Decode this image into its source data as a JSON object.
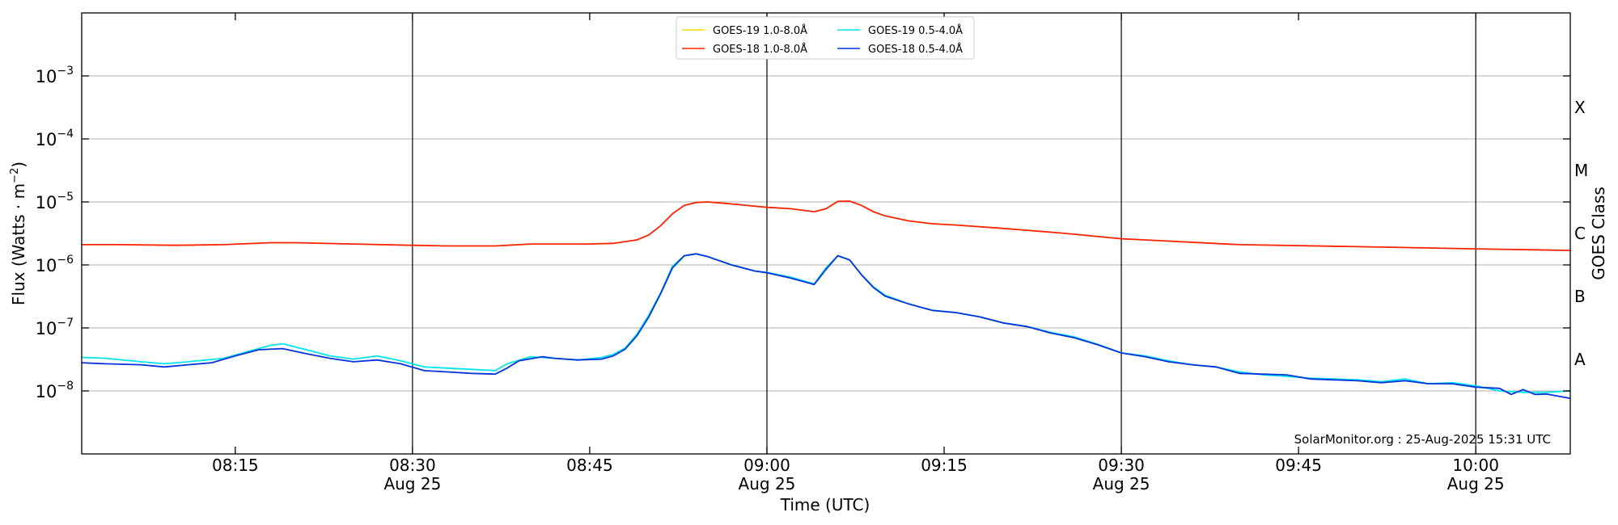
{
  "chart_data": {
    "type": "line",
    "xlabel": "Time (UTC)",
    "ylabel_main": "Flux (Watts · m",
    "ylabel_exp": "−2",
    "ylabel_close": ")",
    "ylabel_right": "GOES Class",
    "x_unit": "UTC time, 25-Aug-2025 (HH:MM)",
    "xlim": [
      "08:02",
      "10:08"
    ],
    "ylim": [
      1e-09,
      0.01
    ],
    "yscale": "log",
    "x_ticks": [
      {
        "t": "08:15",
        "date": ""
      },
      {
        "t": "08:30",
        "date": "Aug 25"
      },
      {
        "t": "08:45",
        "date": ""
      },
      {
        "t": "09:00",
        "date": "Aug 25"
      },
      {
        "t": "09:15",
        "date": ""
      },
      {
        "t": "09:30",
        "date": "Aug 25"
      },
      {
        "t": "09:45",
        "date": ""
      },
      {
        "t": "10:00",
        "date": "Aug 25"
      }
    ],
    "vlines": [
      "08:30",
      "09:00",
      "09:30",
      "10:00"
    ],
    "y_ticks": [
      {
        "value": 1e-08,
        "base": "10",
        "exp": "−8"
      },
      {
        "value": 1e-07,
        "base": "10",
        "exp": "−7"
      },
      {
        "value": 1e-06,
        "base": "10",
        "exp": "−6"
      },
      {
        "value": 1e-05,
        "base": "10",
        "exp": "−5"
      },
      {
        "value": 0.0001,
        "base": "10",
        "exp": "−4"
      },
      {
        "value": 0.001,
        "base": "10",
        "exp": "−3"
      }
    ],
    "goes_classes": [
      {
        "label": "A",
        "value": 3.16e-08
      },
      {
        "label": "B",
        "value": 3.16e-07
      },
      {
        "label": "C",
        "value": 3.16e-06
      },
      {
        "label": "M",
        "value": 3.16e-05
      },
      {
        "label": "X",
        "value": 0.000316
      }
    ],
    "grid": "horizontal at decades",
    "legend_position": "top-center",
    "annotation": "SolarMonitor.org : 25-Aug-2025 15:31 UTC",
    "series": [
      {
        "name": "GOES-19 1.0-8.0Å",
        "color": "#ffd700",
        "points": []
      },
      {
        "name": "GOES-18 1.0-8.0Å",
        "color": "#ff2200",
        "points": [
          [
            "08:02",
            2.1e-06
          ],
          [
            "08:05",
            2.1e-06
          ],
          [
            "08:10",
            2.05e-06
          ],
          [
            "08:14",
            2.1e-06
          ],
          [
            "08:18",
            2.25e-06
          ],
          [
            "08:20",
            2.25e-06
          ],
          [
            "08:25",
            2.15e-06
          ],
          [
            "08:30",
            2.05e-06
          ],
          [
            "08:33",
            2e-06
          ],
          [
            "08:37",
            2e-06
          ],
          [
            "08:40",
            2.15e-06
          ],
          [
            "08:45",
            2.15e-06
          ],
          [
            "08:47",
            2.2e-06
          ],
          [
            "08:49",
            2.5e-06
          ],
          [
            "08:50",
            3e-06
          ],
          [
            "08:51",
            4.2e-06
          ],
          [
            "08:52",
            6.5e-06
          ],
          [
            "08:53",
            8.8e-06
          ],
          [
            "08:54",
            9.8e-06
          ],
          [
            "08:55",
            1e-05
          ],
          [
            "08:57",
            9.3e-06
          ],
          [
            "09:00",
            8.2e-06
          ],
          [
            "09:02",
            7.8e-06
          ],
          [
            "09:04",
            7e-06
          ],
          [
            "09:05",
            7.8e-06
          ],
          [
            "09:06",
            1.02e-05
          ],
          [
            "09:07",
            1.03e-05
          ],
          [
            "09:08",
            8.8e-06
          ],
          [
            "09:09",
            7e-06
          ],
          [
            "09:10",
            6e-06
          ],
          [
            "09:12",
            5e-06
          ],
          [
            "09:14",
            4.5e-06
          ],
          [
            "09:16",
            4.3e-06
          ],
          [
            "09:20",
            3.8e-06
          ],
          [
            "09:25",
            3.2e-06
          ],
          [
            "09:30",
            2.6e-06
          ],
          [
            "09:40",
            2.1e-06
          ],
          [
            "09:50",
            1.95e-06
          ],
          [
            "10:00",
            1.8e-06
          ],
          [
            "10:08",
            1.7e-06
          ]
        ]
      },
      {
        "name": "GOES-19 0.5-4.0Å",
        "color": "#00e5ee",
        "points": [
          [
            "08:02",
            3.4e-08
          ],
          [
            "08:04",
            3.3e-08
          ],
          [
            "08:07",
            2.9e-08
          ],
          [
            "08:09",
            2.7e-08
          ],
          [
            "08:11",
            2.9e-08
          ],
          [
            "08:14",
            3.3e-08
          ],
          [
            "08:16",
            4.2e-08
          ],
          [
            "08:18",
            5.3e-08
          ],
          [
            "08:19",
            5.6e-08
          ],
          [
            "08:21",
            4.5e-08
          ],
          [
            "08:23",
            3.6e-08
          ],
          [
            "08:25",
            3.2e-08
          ],
          [
            "08:27",
            3.6e-08
          ],
          [
            "08:29",
            3e-08
          ],
          [
            "08:31",
            2.4e-08
          ],
          [
            "08:33",
            2.3e-08
          ],
          [
            "08:35",
            2.2e-08
          ],
          [
            "08:37",
            2.1e-08
          ],
          [
            "08:38",
            2.7e-08
          ],
          [
            "08:40",
            3.5e-08
          ],
          [
            "08:42",
            3.3e-08
          ],
          [
            "08:44",
            3.1e-08
          ],
          [
            "08:46",
            3.4e-08
          ],
          [
            "08:47",
            3.8e-08
          ],
          [
            "08:48",
            4.8e-08
          ],
          [
            "08:49",
            8e-08
          ],
          [
            "08:50",
            1.6e-07
          ],
          [
            "08:51",
            3.6e-07
          ],
          [
            "08:52",
            9.5e-07
          ],
          [
            "08:53",
            1.4e-06
          ],
          [
            "08:54",
            1.5e-06
          ],
          [
            "08:55",
            1.35e-06
          ],
          [
            "08:57",
            1e-06
          ],
          [
            "08:59",
            8e-07
          ],
          [
            "09:00",
            7.6e-07
          ],
          [
            "09:02",
            6.4e-07
          ],
          [
            "09:04",
            5e-07
          ],
          [
            "09:05",
            9e-07
          ],
          [
            "09:06",
            1.4e-06
          ],
          [
            "09:07",
            1.2e-06
          ],
          [
            "09:08",
            7e-07
          ],
          [
            "09:09",
            4.5e-07
          ],
          [
            "09:10",
            3.3e-07
          ],
          [
            "09:12",
            2.4e-07
          ],
          [
            "09:14",
            1.9e-07
          ],
          [
            "09:16",
            1.75e-07
          ],
          [
            "09:18",
            1.5e-07
          ],
          [
            "09:20",
            1.2e-07
          ],
          [
            "09:22",
            1.05e-07
          ],
          [
            "09:24",
            8.5e-08
          ],
          [
            "09:26",
            7.2e-08
          ],
          [
            "09:28",
            5.5e-08
          ],
          [
            "09:30",
            4e-08
          ],
          [
            "09:32",
            3.6e-08
          ],
          [
            "09:34",
            3e-08
          ],
          [
            "09:36",
            2.6e-08
          ],
          [
            "09:38",
            2.4e-08
          ],
          [
            "09:40",
            2e-08
          ],
          [
            "09:42",
            1.8e-08
          ],
          [
            "09:44",
            1.7e-08
          ],
          [
            "09:46",
            1.6e-08
          ],
          [
            "09:48",
            1.55e-08
          ],
          [
            "09:50",
            1.5e-08
          ],
          [
            "09:52",
            1.4e-08
          ],
          [
            "09:54",
            1.55e-08
          ],
          [
            "09:56",
            1.3e-08
          ],
          [
            "09:58",
            1.35e-08
          ],
          [
            "10:00",
            1.2e-08
          ],
          [
            "10:02",
            1e-08
          ],
          [
            "10:04",
            9.5e-09
          ],
          [
            "10:06",
            9.5e-09
          ],
          [
            "10:08",
            1e-08
          ]
        ]
      },
      {
        "name": "GOES-18 0.5-4.0Å",
        "color": "#0033dd",
        "points": [
          [
            "08:02",
            2.8e-08
          ],
          [
            "08:04",
            2.7e-08
          ],
          [
            "08:07",
            2.6e-08
          ],
          [
            "08:09",
            2.4e-08
          ],
          [
            "08:11",
            2.6e-08
          ],
          [
            "08:13",
            2.8e-08
          ],
          [
            "08:15",
            3.6e-08
          ],
          [
            "08:17",
            4.5e-08
          ],
          [
            "08:19",
            4.7e-08
          ],
          [
            "08:21",
            3.9e-08
          ],
          [
            "08:23",
            3.3e-08
          ],
          [
            "08:25",
            2.9e-08
          ],
          [
            "08:27",
            3.1e-08
          ],
          [
            "08:29",
            2.7e-08
          ],
          [
            "08:31",
            2.1e-08
          ],
          [
            "08:33",
            2e-08
          ],
          [
            "08:35",
            1.9e-08
          ],
          [
            "08:37",
            1.85e-08
          ],
          [
            "08:38",
            2.3e-08
          ],
          [
            "08:39",
            3e-08
          ],
          [
            "08:41",
            3.5e-08
          ],
          [
            "08:42",
            3.3e-08
          ],
          [
            "08:44",
            3.1e-08
          ],
          [
            "08:46",
            3.2e-08
          ],
          [
            "08:47",
            3.6e-08
          ],
          [
            "08:48",
            4.6e-08
          ],
          [
            "08:49",
            7.5e-08
          ],
          [
            "08:50",
            1.5e-07
          ],
          [
            "08:51",
            3.5e-07
          ],
          [
            "08:52",
            9e-07
          ],
          [
            "08:53",
            1.4e-06
          ],
          [
            "08:54",
            1.5e-06
          ],
          [
            "08:55",
            1.35e-06
          ],
          [
            "08:57",
            1e-06
          ],
          [
            "08:59",
            8e-07
          ],
          [
            "09:00",
            7.5e-07
          ],
          [
            "09:02",
            6.2e-07
          ],
          [
            "09:04",
            4.9e-07
          ],
          [
            "09:05",
            8.5e-07
          ],
          [
            "09:06",
            1.4e-06
          ],
          [
            "09:07",
            1.2e-06
          ],
          [
            "09:08",
            7e-07
          ],
          [
            "09:09",
            4.4e-07
          ],
          [
            "09:10",
            3.2e-07
          ],
          [
            "09:12",
            2.4e-07
          ],
          [
            "09:14",
            1.9e-07
          ],
          [
            "09:16",
            1.75e-07
          ],
          [
            "09:18",
            1.5e-07
          ],
          [
            "09:20",
            1.2e-07
          ],
          [
            "09:22",
            1.05e-07
          ],
          [
            "09:24",
            8.3e-08
          ],
          [
            "09:26",
            7e-08
          ],
          [
            "09:28",
            5.4e-08
          ],
          [
            "09:30",
            4e-08
          ],
          [
            "09:32",
            3.5e-08
          ],
          [
            "09:34",
            2.9e-08
          ],
          [
            "09:36",
            2.6e-08
          ],
          [
            "09:38",
            2.4e-08
          ],
          [
            "09:40",
            1.9e-08
          ],
          [
            "09:42",
            1.85e-08
          ],
          [
            "09:44",
            1.8e-08
          ],
          [
            "09:46",
            1.55e-08
          ],
          [
            "09:48",
            1.5e-08
          ],
          [
            "09:50",
            1.45e-08
          ],
          [
            "09:52",
            1.35e-08
          ],
          [
            "09:54",
            1.45e-08
          ],
          [
            "09:56",
            1.3e-08
          ],
          [
            "09:58",
            1.3e-08
          ],
          [
            "10:00",
            1.15e-08
          ],
          [
            "10:02",
            1.1e-08
          ],
          [
            "10:03",
            8.8e-09
          ],
          [
            "10:04",
            1.05e-08
          ],
          [
            "10:05",
            8.8e-09
          ],
          [
            "10:06",
            8.9e-09
          ],
          [
            "10:08",
            7.6e-09
          ]
        ]
      }
    ]
  }
}
